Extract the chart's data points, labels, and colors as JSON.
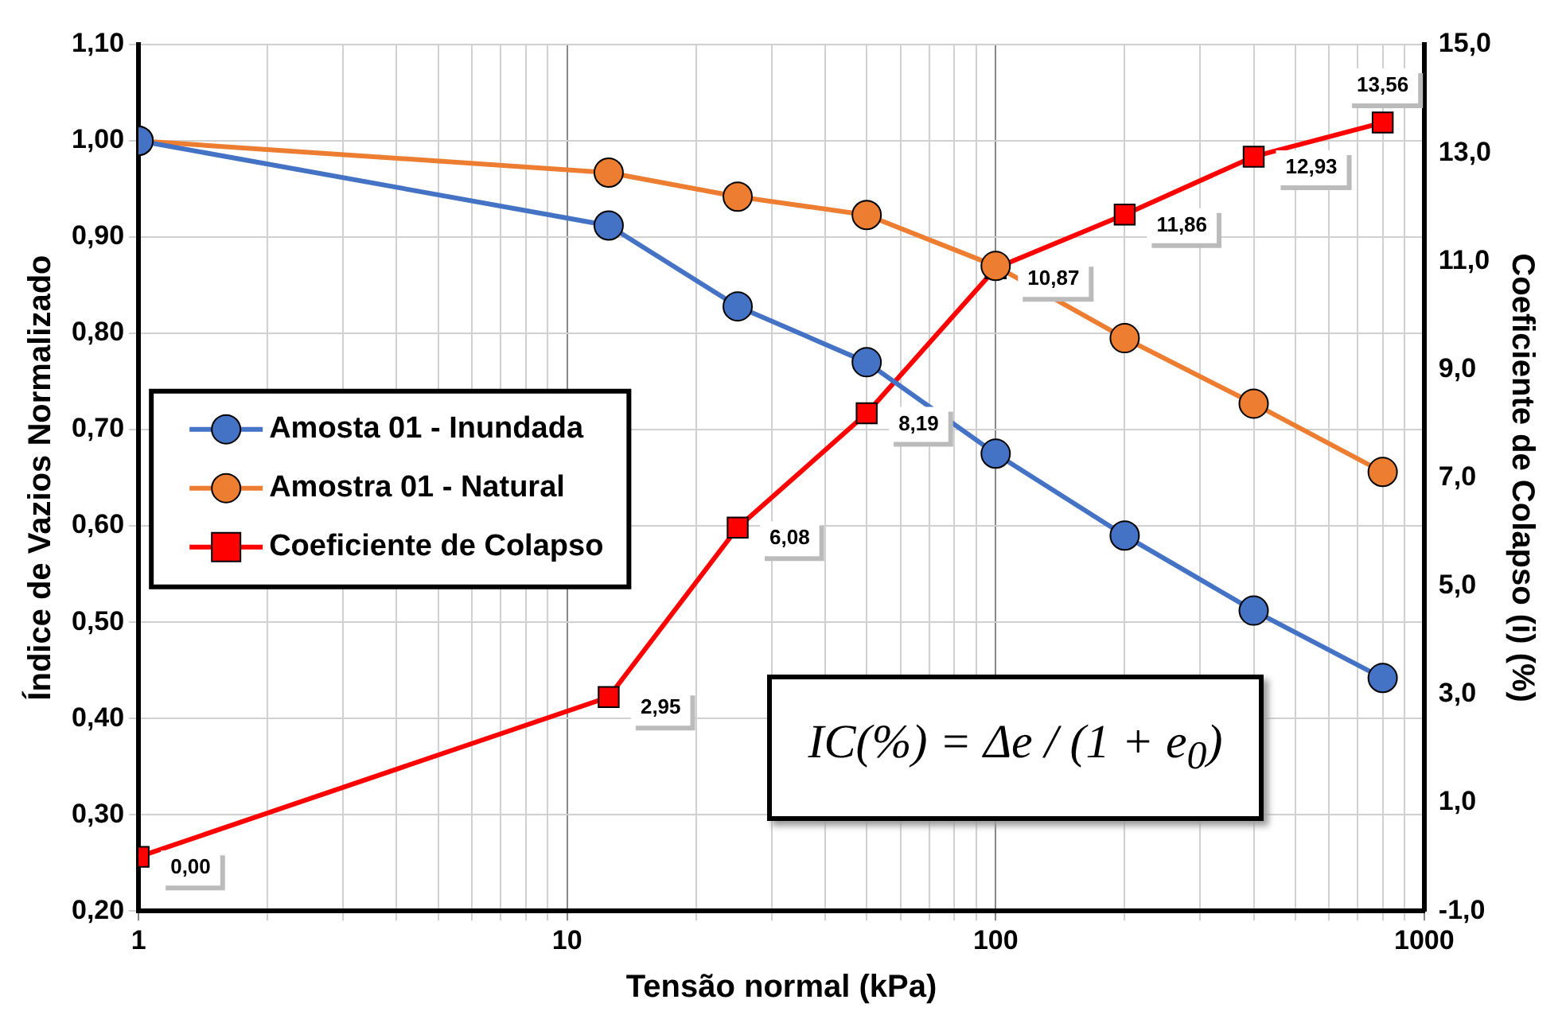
{
  "chart_data": {
    "type": "line",
    "xlabel": "Tensão normal (kPa)",
    "ylabel": "Índice de Vazios Normalizado",
    "y2label": "Coeficiente de Colapso (i) (%)",
    "x": [
      1,
      12.5,
      25,
      50,
      100,
      200,
      400,
      800
    ],
    "log": "x",
    "xlim": [
      1,
      1000
    ],
    "xticks": [
      1,
      {
        "value": 2,
        "label": null
      },
      {
        "value": 3,
        "label": null
      },
      {
        "value": 4,
        "label": null
      },
      {
        "value": 5,
        "label": null
      },
      {
        "value": 6,
        "label": null
      },
      {
        "value": 7,
        "label": null
      },
      {
        "value": 8,
        "label": null
      },
      {
        "value": 9,
        "label": null
      },
      10,
      {
        "value": 20,
        "label": null
      },
      {
        "value": 30,
        "label": null
      },
      {
        "value": 40,
        "label": null
      },
      {
        "value": 50,
        "label": null
      },
      {
        "value": 60,
        "label": null
      },
      {
        "value": 70,
        "label": null
      },
      {
        "value": 80,
        "label": null
      },
      {
        "value": 90,
        "label": null
      },
      100,
      {
        "value": 200,
        "label": null
      },
      {
        "value": 300,
        "label": null
      },
      {
        "value": 400,
        "label": null
      },
      {
        "value": 500,
        "label": null
      },
      {
        "value": 600,
        "label": null
      },
      {
        "value": 700,
        "label": null
      },
      {
        "value": 800,
        "label": null
      },
      {
        "value": 900,
        "label": null
      },
      1000
    ],
    "ylim": [
      0.2,
      1.1
    ],
    "yticks": [
      {
        "value": 0.2,
        "label": "0,20"
      },
      {
        "value": 0.3,
        "label": "0,30"
      },
      {
        "value": 0.4,
        "label": "0,40"
      },
      {
        "value": 0.5,
        "label": "0,50"
      },
      {
        "value": 0.6,
        "label": "0,60"
      },
      {
        "value": 0.7,
        "label": "0,70"
      },
      {
        "value": 0.8,
        "label": "0,80"
      },
      {
        "value": 0.9,
        "label": "0,90"
      },
      {
        "value": 1.0,
        "label": "1,00"
      },
      {
        "value": 1.1,
        "label": "1,10"
      }
    ],
    "y2lim": [
      -1,
      15
    ],
    "y2ticks": [
      {
        "value": -1,
        "label": "-1,0"
      },
      {
        "value": 1,
        "label": "1,0"
      },
      {
        "value": 3,
        "label": "3,0"
      },
      {
        "value": 5,
        "label": "5,0"
      },
      {
        "value": 7,
        "label": "7,0"
      },
      {
        "value": 9,
        "label": "9,0"
      },
      {
        "value": 11,
        "label": "11,0"
      },
      {
        "value": 13,
        "label": "13,0"
      },
      {
        "value": 15,
        "label": "15,0"
      }
    ],
    "grid": true,
    "legend": "left",
    "line_style": "solid",
    "series": [
      {
        "name": "Amosta 01 - Inundada",
        "color": "#4472c4",
        "marker": "circle",
        "values": [
          1.0,
          0.912,
          0.828,
          0.77,
          0.675,
          0.59,
          0.512,
          0.442
        ]
      },
      {
        "name": "Amostra 01 - Natural",
        "color": "#ed7d31",
        "marker": "circle",
        "values": [
          1.0,
          0.967,
          0.942,
          0.923,
          0.87,
          0.795,
          0.727,
          0.656
        ]
      },
      {
        "name": "Coeficiente de Colapso",
        "color": "#ff0000",
        "marker": "square",
        "axis": "y2",
        "values": [
          0.0,
          2.95,
          6.08,
          8.19,
          10.87,
          11.86,
          12.93,
          13.56
        ],
        "value_labels": [
          "0,00",
          "2,95",
          "6,08",
          "8,19",
          "10,87",
          "11,86",
          "12,93",
          "13,56"
        ]
      }
    ],
    "annotations": [
      "IC(%) = Δe / (1 + e$_{0}$)"
    ]
  }
}
